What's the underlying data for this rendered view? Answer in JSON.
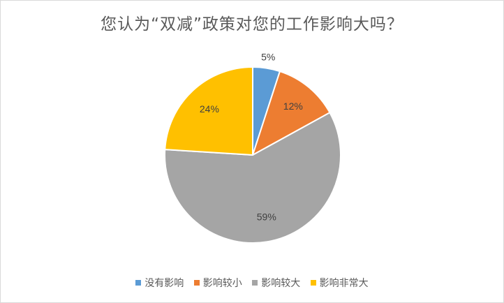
{
  "chart_data": {
    "type": "pie",
    "title": "您认为“双减”政策对您的工作影响大吗？",
    "categories": [
      "没有影响",
      "影响较小",
      "影响较大",
      "影响非常大"
    ],
    "values": [
      5,
      12,
      59,
      24
    ],
    "labels": [
      "5%",
      "12%",
      "59%",
      "24%"
    ],
    "colors": [
      "#5b9bd5",
      "#ed7d31",
      "#a5a5a5",
      "#ffc000"
    ],
    "legend": "bottom"
  }
}
